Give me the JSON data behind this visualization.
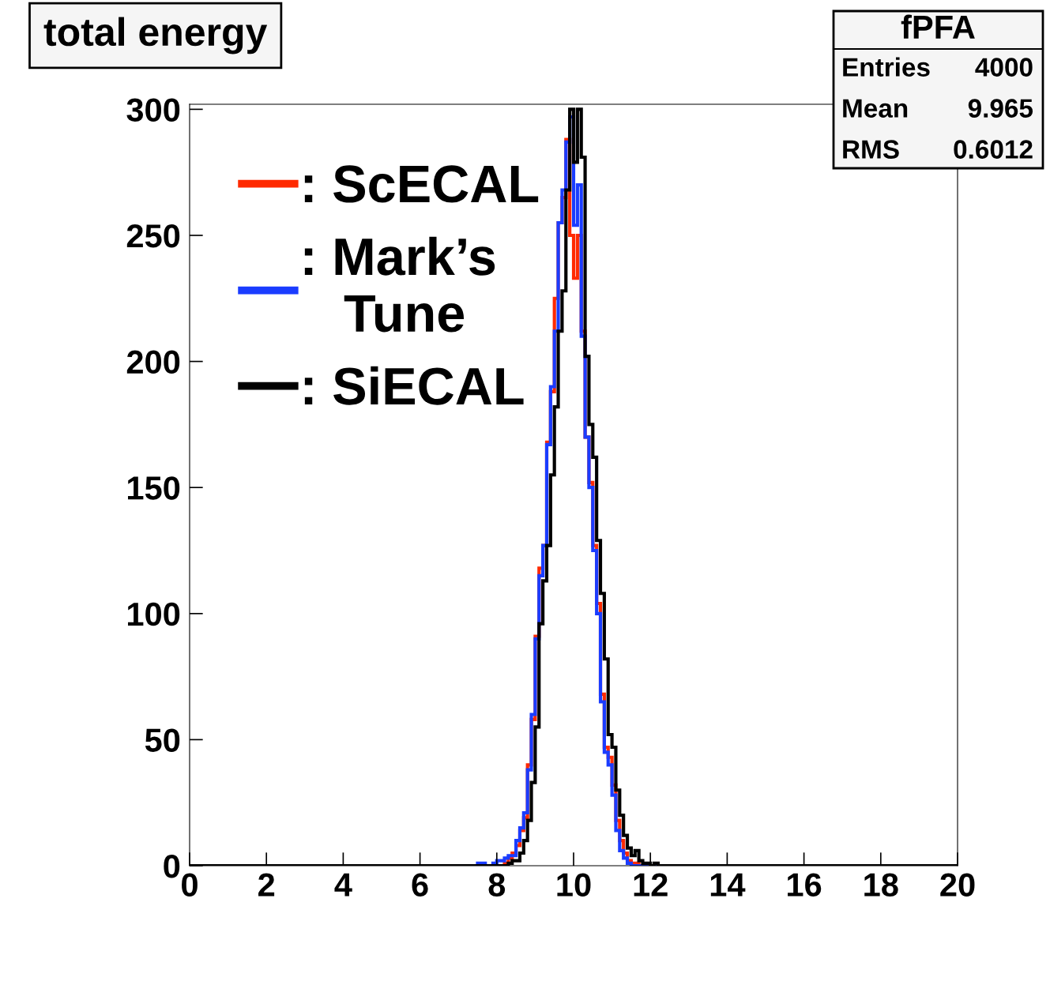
{
  "chart_data": {
    "type": "histogram",
    "title": "total energy",
    "bins": [
      0,
      7.5,
      7.6,
      7.7,
      7.8,
      7.9,
      8.0,
      8.1,
      8.2,
      8.3,
      8.4,
      8.5,
      8.6,
      8.7,
      8.8,
      8.9,
      9.0,
      9.1,
      9.2,
      9.3,
      9.4,
      9.5,
      9.6,
      9.7,
      9.8,
      9.9,
      10.0,
      10.1,
      10.2,
      10.3,
      10.4,
      10.5,
      10.6,
      10.7,
      10.8,
      10.9,
      11.0,
      11.1,
      11.2,
      11.3,
      11.4,
      11.5,
      11.6,
      11.7,
      11.8,
      11.9,
      12.0,
      12.1,
      12.2,
      12.3,
      12.4,
      12.5,
      20
    ],
    "series": [
      {
        "name": ": ScECAL",
        "color": "#ff2a00",
        "values": [
          0,
          0,
          0,
          0,
          0,
          0,
          0,
          0,
          1,
          3,
          5,
          8,
          14,
          19,
          40,
          58,
          91,
          118,
          127,
          168,
          188,
          225,
          255,
          265,
          288,
          250,
          233,
          250,
          212,
          170,
          152,
          127,
          104,
          68,
          47,
          43,
          32,
          18,
          10,
          5,
          2,
          1,
          1,
          0,
          0,
          0,
          0,
          0,
          0,
          0,
          0,
          0
        ]
      },
      {
        "name": ": Mark’s Tune",
        "color": "#1a3cff",
        "values": [
          0,
          1,
          1,
          0,
          0,
          1,
          2,
          2,
          3,
          4,
          4,
          10,
          15,
          21,
          38,
          60,
          90,
          115,
          127,
          167,
          190,
          212,
          255,
          268,
          287,
          297,
          254,
          270,
          210,
          170,
          150,
          125,
          100,
          65,
          45,
          40,
          28,
          14,
          6,
          3,
          1,
          0,
          0,
          0,
          0,
          0,
          0,
          0,
          0,
          0,
          0,
          0
        ]
      },
      {
        "name": ": SiECAL",
        "color": "#000000",
        "values": [
          0,
          0,
          0,
          0,
          0,
          0,
          0,
          0,
          0,
          1,
          2,
          2,
          5,
          10,
          18,
          33,
          55,
          96,
          113,
          127,
          155,
          182,
          212,
          228,
          268,
          300,
          279,
          300,
          281,
          202,
          175,
          162,
          129,
          108,
          82,
          52,
          47,
          30,
          20,
          12,
          7,
          4,
          6,
          2,
          1,
          1,
          0,
          1,
          0,
          0,
          0,
          0
        ]
      }
    ],
    "xlim": [
      0,
      20
    ],
    "xticks": [
      0,
      2,
      4,
      6,
      8,
      10,
      12,
      14,
      16,
      18,
      20
    ],
    "ylim": [
      0,
      302
    ],
    "yticks": [
      0,
      50,
      100,
      150,
      200,
      250,
      300
    ],
    "grid": false,
    "legend": "top left",
    "annotations": [
      "fPFA",
      "Entries",
      "4000",
      "Mean",
      "9.965",
      "RMS",
      "0.6012"
    ]
  }
}
